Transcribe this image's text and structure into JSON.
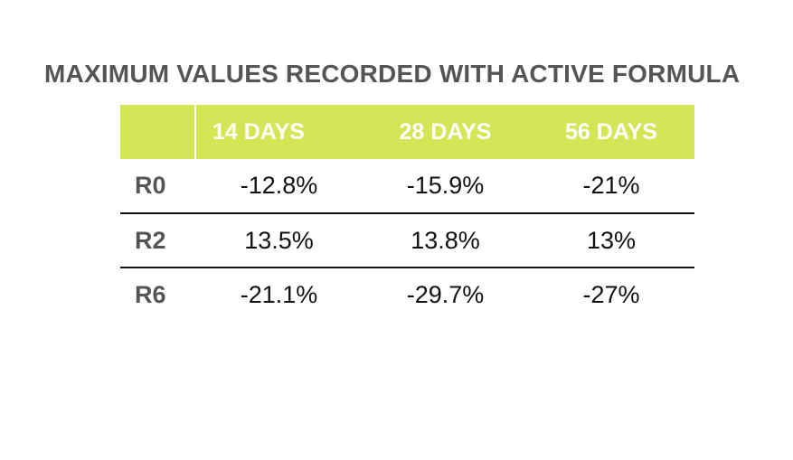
{
  "title": "MAXIMUM VALUES RECORDED WITH ACTIVE FORMULA",
  "colors": {
    "header_bg": "#d4e655",
    "header_text": "#ffffff",
    "title_text": "#555555",
    "cell_text": "#111111"
  },
  "table": {
    "columns": [
      "14 DAYS",
      "28 DAYS",
      "56 DAYS"
    ],
    "rows": [
      {
        "label": "R0",
        "values": [
          "-12.8%",
          "-15.9%",
          "-21%"
        ]
      },
      {
        "label": "R2",
        "values": [
          "13.5%",
          "13.8%",
          "13%"
        ]
      },
      {
        "label": "R6",
        "values": [
          "-21.1%",
          "-29.7%",
          "-27%"
        ]
      }
    ]
  }
}
